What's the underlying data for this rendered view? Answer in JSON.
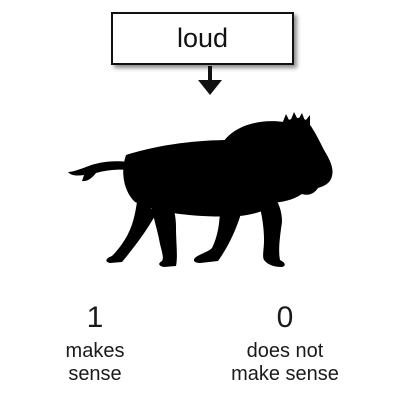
{
  "prompt": {
    "word": "loud"
  },
  "choices": [
    {
      "value": "1",
      "line1": "makes",
      "line2": "sense"
    },
    {
      "value": "0",
      "line1": "does not",
      "line2": "make sense"
    }
  ],
  "image": {
    "subject_icon": "lion-silhouette-icon",
    "fill_color": "#000000"
  },
  "colors": {
    "text": "#1a1a1a",
    "box_border": "#111111",
    "background": "#ffffff"
  }
}
